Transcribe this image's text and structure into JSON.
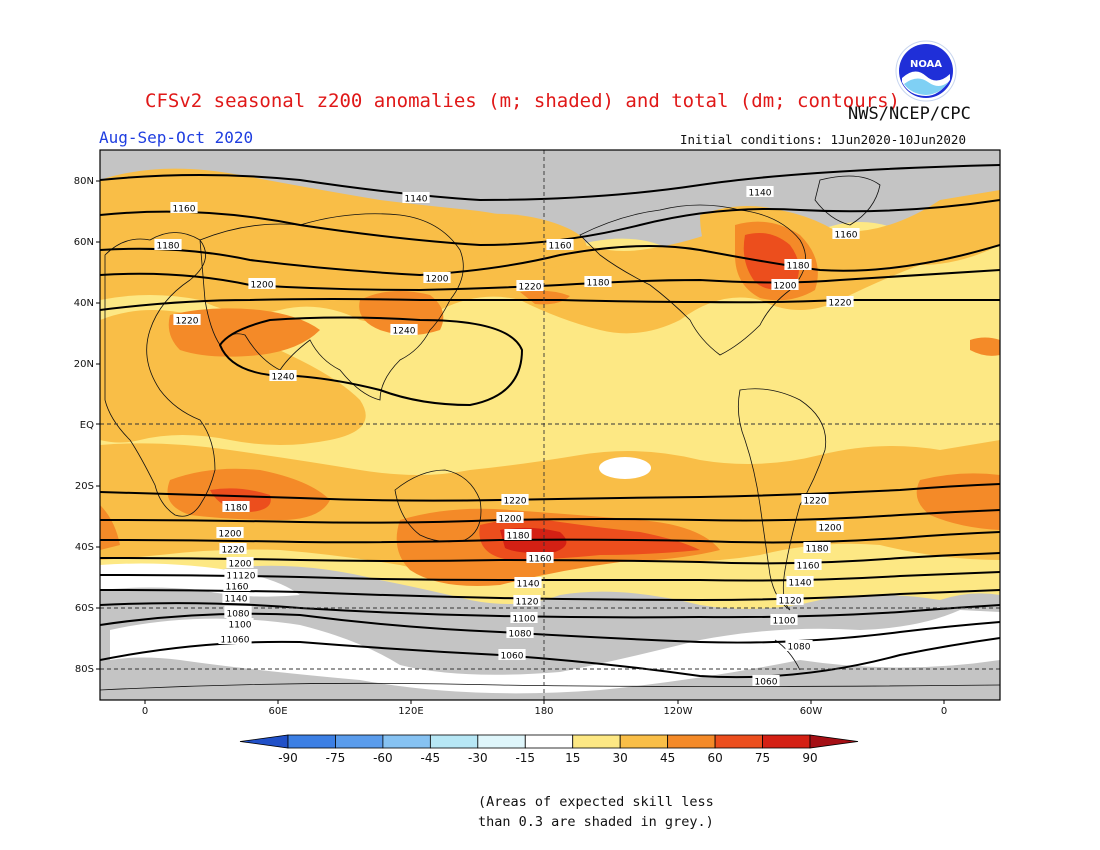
{
  "title": "CFSv2 seasonal z200 anomalies (m; shaded) and total (dm; contours)",
  "agency": "NWS/NCEP/CPC",
  "logo_text": "NOAA",
  "season": "Aug-Sep-Oct 2020",
  "initial_conditions": "Initial conditions: 1Jun2020-10Jun2020",
  "footnote": {
    "line1": "(Areas of expected skill less",
    "line2": "than 0.3 are shaded in grey.)"
  },
  "map": {
    "lat_labels": [
      "80N",
      "60N",
      "40N",
      "20N",
      "EQ",
      "20S",
      "40S",
      "60S",
      "80S"
    ],
    "lon_labels": [
      "0",
      "60E",
      "120E",
      "180",
      "120W",
      "60W",
      "0"
    ],
    "contour_labels": [
      "1140",
      "1160",
      "1180",
      "1200",
      "1220",
      "1240",
      "1240",
      "1140",
      "1160",
      "1180",
      "1200",
      "1220",
      "1160",
      "1180",
      "1200",
      "1220",
      "1180",
      "1200",
      "1220",
      "1220",
      "1200",
      "1180",
      "1160",
      "1140",
      "1120",
      "1100",
      "1080",
      "1060",
      "1080",
      "1220",
      "1200",
      "1180",
      "1160",
      "1140",
      "1120",
      "1100",
      "1080",
      "1060",
      "1220",
      "1200",
      "1180",
      "1160",
      "1140",
      "1120",
      "1100",
      "1080",
      "1060"
    ]
  },
  "colorbar": {
    "ticks": [
      "-90",
      "-75",
      "-60",
      "-45",
      "-30",
      "-15",
      "15",
      "30",
      "45",
      "60",
      "75",
      "90"
    ],
    "colors": [
      "#2a63d8",
      "#3c7fe4",
      "#5a9cec",
      "#86c2f2",
      "#b7e7f5",
      "#ffffff",
      "#fde884",
      "#f9be47",
      "#f48a28",
      "#ec4e1d",
      "#d42014",
      "#a50f15"
    ],
    "low_end": "#2050c8",
    "high_end": "#a50f15"
  }
}
